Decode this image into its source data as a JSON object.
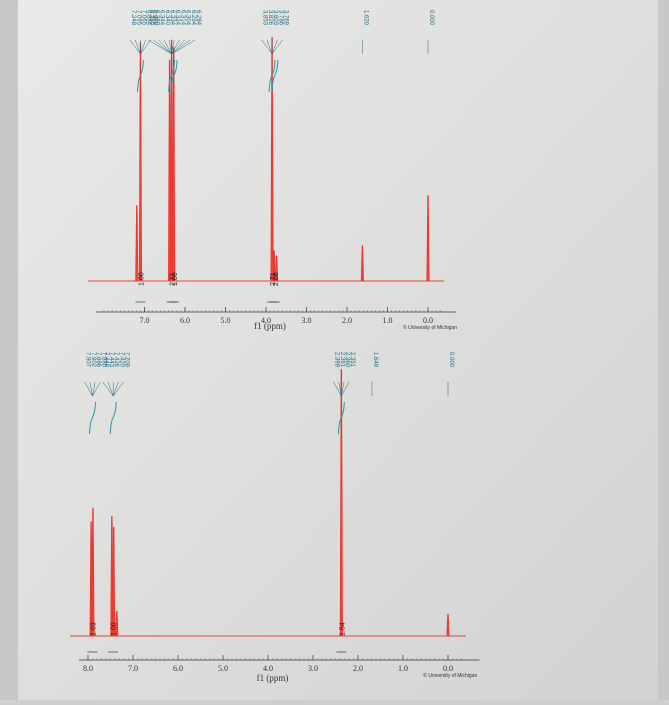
{
  "chart_data": [
    {
      "type": "line",
      "title": "",
      "xlabel": "f1 (ppm)",
      "ylabel": "",
      "xlim": [
        8.0,
        -0.4
      ],
      "x_reversed": true,
      "grid": false,
      "copyright": "© University of Michigan",
      "x_ticks": [
        "7.0",
        "6.0",
        "5.0",
        "4.0",
        "3.0",
        "2.0",
        "1.0",
        "0.0"
      ],
      "peaks": [
        {
          "shift": 7.19,
          "height": 0.3
        },
        {
          "shift": 7.1,
          "height": 0.95
        },
        {
          "shift": 6.38,
          "height": 0.88
        },
        {
          "shift": 6.33,
          "height": 0.96
        },
        {
          "shift": 6.28,
          "height": 0.93
        },
        {
          "shift": 3.85,
          "height": 0.97
        },
        {
          "shift": 3.8,
          "height": 0.12
        },
        {
          "shift": 3.74,
          "height": 0.1
        },
        {
          "shift": 1.62,
          "height": 0.14
        },
        {
          "shift": 0.0,
          "height": 0.34
        }
      ],
      "peak_labels": [
        {
          "group": "7.10",
          "values": [
            "7.248",
            "7.095",
            "7.065",
            "6.884",
            "6.969"
          ]
        },
        {
          "group": "6.33",
          "values": [
            "6.350",
            "6.360",
            "6.344",
            "6.340",
            "6.334",
            "6.324",
            "6.314",
            "6.304",
            "6.294",
            "6.284"
          ]
        },
        {
          "group": "3.85",
          "values": [
            "3.853",
            "3.826",
            "3.803",
            "3.786",
            "3.769"
          ]
        },
        {
          "group": "1.62",
          "values": [
            "1.620"
          ]
        },
        {
          "group": "0.00",
          "values": [
            "0.000"
          ]
        }
      ],
      "integrals": [
        {
          "shift": 7.1,
          "label": "1.00"
        },
        {
          "shift": 6.33,
          "label": "2.11"
        },
        {
          "shift": 6.27,
          "label": "1.00"
        },
        {
          "shift": 3.85,
          "label": "2.71"
        },
        {
          "shift": 3.78,
          "label": "2.08"
        }
      ]
    },
    {
      "type": "line",
      "title": "",
      "xlabel": "f1 (ppm)",
      "ylabel": "",
      "xlim": [
        8.0,
        -0.4
      ],
      "x_reversed": true,
      "grid": false,
      "copyright": "© University of Michigan",
      "x_ticks": [
        "8.0",
        "7.0",
        "6.0",
        "5.0",
        "4.0",
        "3.0",
        "2.0",
        "1.0",
        "0.0"
      ],
      "peaks": [
        {
          "shift": 7.93,
          "height": 0.42
        },
        {
          "shift": 7.89,
          "height": 0.47
        },
        {
          "shift": 7.47,
          "height": 0.44
        },
        {
          "shift": 7.43,
          "height": 0.4
        },
        {
          "shift": 7.36,
          "height": 0.09
        },
        {
          "shift": 2.37,
          "height": 0.98
        },
        {
          "shift": 0.0,
          "height": 0.08
        }
      ],
      "peak_labels": [
        {
          "group": "7.90",
          "values": [
            "7.907",
            "7.902",
            "7.886",
            "7.880"
          ]
        },
        {
          "group": "7.44",
          "values": [
            "7.448",
            "7.443",
            "7.426",
            "7.420",
            "7.208"
          ]
        },
        {
          "group": "2.37",
          "values": [
            "2.399",
            "2.391",
            "2.360",
            "2.351"
          ]
        },
        {
          "group": "1.69",
          "values": [
            "1.649"
          ]
        },
        {
          "group": "0.00",
          "values": [
            "0.000"
          ]
        }
      ],
      "integrals": [
        {
          "shift": 7.9,
          "label": "1.03"
        },
        {
          "shift": 7.44,
          "label": "1.00"
        },
        {
          "shift": 2.37,
          "label": "1.54"
        }
      ]
    }
  ]
}
